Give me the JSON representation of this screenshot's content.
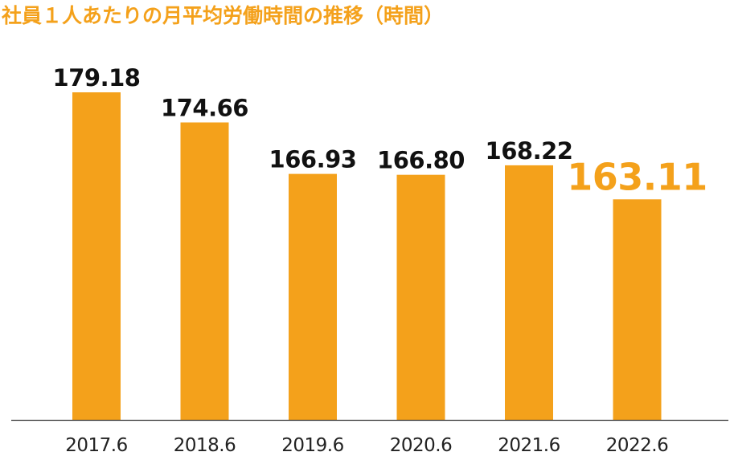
{
  "chart_data": {
    "type": "bar",
    "title": "社員１人あたりの月平均労働時間の推移（時間）",
    "categories": [
      "2017.6",
      "2018.6",
      "2019.6",
      "2020.6",
      "2021.6",
      "2022.6"
    ],
    "values": [
      179.18,
      174.66,
      166.93,
      166.8,
      168.22,
      163.11
    ],
    "data_labels": [
      "179.18",
      "174.66",
      "166.93",
      "166.80",
      "168.22",
      "163.11"
    ],
    "highlight_index": 5,
    "xlabel": "",
    "ylabel": "",
    "ylim": [
      130,
      182
    ],
    "grid": false,
    "legend": "none"
  },
  "colors": {
    "bar": "#f4a11b",
    "title": "#f4a11b",
    "value_label": "#111111",
    "highlight_label": "#f4a11b",
    "axis": "#333333"
  }
}
